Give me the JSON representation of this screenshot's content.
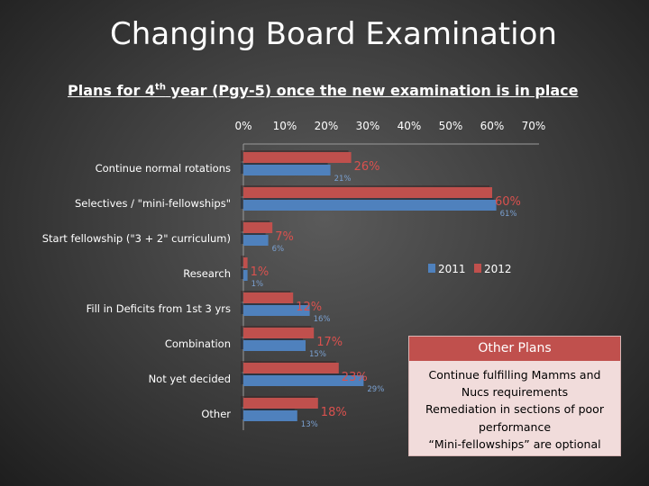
{
  "slide": {
    "title": "Changing Board Examination",
    "subtitle_pre": "Plans for 4",
    "subtitle_sup": "th",
    "subtitle_post": " year (Pgy-5) once the new examination is in place"
  },
  "other_plans": {
    "header": "Other Plans",
    "lines": [
      "Continue fulfilling Mamms and",
      "Nucs requirements",
      "Remediation in sections of poor",
      "performance",
      "“Mini-fellowships” are optional"
    ]
  },
  "chart_data": {
    "type": "bar",
    "orientation": "horizontal",
    "categories": [
      "Continue normal rotations",
      "Selectives / \"mini-fellowships\"",
      "Start fellowship (\"3 + 2\" curriculum)",
      "Research",
      "Fill in Deficits from 1st 3 yrs",
      "Combination",
      "Not yet decided",
      "Other"
    ],
    "series": [
      {
        "name": "2011",
        "color": "#4f81bd",
        "values": [
          21,
          61,
          6,
          1,
          16,
          15,
          29,
          13
        ],
        "labels": [
          "21%",
          "61%",
          "6%",
          "1%",
          "16%",
          "15%",
          "29%",
          "13%"
        ]
      },
      {
        "name": "2012",
        "color": "#c0504d",
        "values": [
          26,
          60,
          7,
          1,
          12,
          17,
          23,
          18
        ],
        "labels": [
          "26%",
          "60%",
          "7%",
          "1%",
          "12%",
          "17%",
          "23%",
          "18%"
        ]
      }
    ],
    "x_ticks": [
      "0%",
      "10%",
      "20%",
      "30%",
      "40%",
      "50%",
      "60%",
      "70%"
    ],
    "xlim": [
      0,
      70
    ],
    "x_axis_position": "top",
    "legend_placement": "right",
    "grid": false
  }
}
